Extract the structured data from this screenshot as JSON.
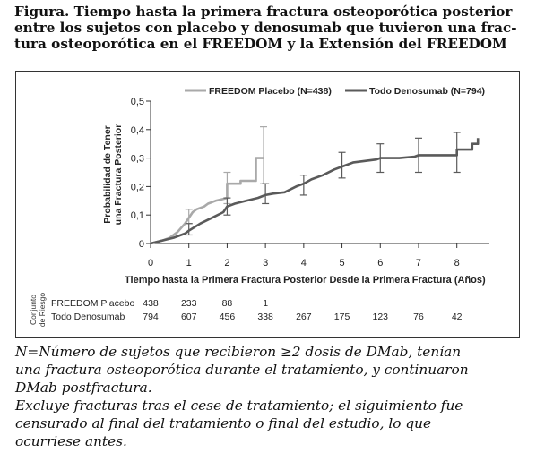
{
  "title_lines": [
    "Figura. Tiempo hasta la primera fractura osteoporótica posterior",
    "entre los sujetos con placebo y denosumab que tuvieron una frac-",
    "tura osteoporótica en el FREEDOM y la Extensión del FREEDOM"
  ],
  "chart_data": {
    "type": "line",
    "xlabel": "Tiempo hasta la Primera Fractura Posterior Desde la Primera Fractura (Años)",
    "ylabel_lines": [
      "Probabilidad de Tener",
      "una Fractura Posterior"
    ],
    "xlim": [
      0,
      8.85
    ],
    "ylim": [
      0,
      0.5
    ],
    "x_ticks": [
      "0",
      "1",
      "2",
      "3",
      "4",
      "5",
      "6",
      "7",
      "8"
    ],
    "y_ticks": [
      "0",
      "0,1",
      "0,2",
      "0,3",
      "0,4",
      "0,5"
    ],
    "legend_position": "top",
    "series": [
      {
        "name": "FREEDOM Placebo (N=438)",
        "color": "#a9a9a9",
        "step": [
          [
            0,
            0
          ],
          [
            0.3,
            0.01
          ],
          [
            0.5,
            0.02
          ],
          [
            0.7,
            0.04
          ],
          [
            0.9,
            0.07
          ],
          [
            1.0,
            0.09
          ],
          [
            1.1,
            0.11
          ],
          [
            1.2,
            0.12
          ],
          [
            1.4,
            0.13
          ],
          [
            1.5,
            0.14
          ],
          [
            1.7,
            0.15
          ],
          [
            1.85,
            0.155
          ],
          [
            2.0,
            0.16
          ],
          [
            2.0,
            0.21
          ],
          [
            2.35,
            0.21
          ],
          [
            2.35,
            0.22
          ],
          [
            2.75,
            0.22
          ],
          [
            2.75,
            0.3
          ],
          [
            2.95,
            0.3
          ]
        ],
        "ci": [
          [
            1.0,
            0.07,
            0.12
          ],
          [
            2.0,
            0.14,
            0.25
          ],
          [
            2.95,
            0.21,
            0.41
          ]
        ]
      },
      {
        "name": "Todo Denosumab (N=794)",
        "color": "#5a5a5a",
        "step": [
          [
            0,
            0
          ],
          [
            0.3,
            0.01
          ],
          [
            0.6,
            0.02
          ],
          [
            0.9,
            0.035
          ],
          [
            1.0,
            0.045
          ],
          [
            1.3,
            0.07
          ],
          [
            1.6,
            0.09
          ],
          [
            1.9,
            0.11
          ],
          [
            2.0,
            0.13
          ],
          [
            2.2,
            0.14
          ],
          [
            2.5,
            0.15
          ],
          [
            2.8,
            0.16
          ],
          [
            3.0,
            0.17
          ],
          [
            3.2,
            0.175
          ],
          [
            3.5,
            0.18
          ],
          [
            3.8,
            0.2
          ],
          [
            4.0,
            0.21
          ],
          [
            4.2,
            0.225
          ],
          [
            4.5,
            0.24
          ],
          [
            4.8,
            0.26
          ],
          [
            5.0,
            0.27
          ],
          [
            5.3,
            0.285
          ],
          [
            5.6,
            0.29
          ],
          [
            5.9,
            0.295
          ],
          [
            6.0,
            0.3
          ],
          [
            6.5,
            0.3
          ],
          [
            6.9,
            0.305
          ],
          [
            7.0,
            0.31
          ],
          [
            7.5,
            0.31
          ],
          [
            8.0,
            0.31
          ],
          [
            8.0,
            0.33
          ],
          [
            8.4,
            0.33
          ],
          [
            8.4,
            0.35
          ],
          [
            8.55,
            0.35
          ],
          [
            8.55,
            0.37
          ]
        ],
        "ci": [
          [
            1.0,
            0.03,
            0.07
          ],
          [
            2.0,
            0.1,
            0.16
          ],
          [
            3.0,
            0.14,
            0.21
          ],
          [
            4.0,
            0.17,
            0.24
          ],
          [
            5.0,
            0.23,
            0.32
          ],
          [
            6.0,
            0.25,
            0.35
          ],
          [
            7.0,
            0.25,
            0.37
          ],
          [
            8.0,
            0.25,
            0.39
          ]
        ]
      }
    ],
    "risk_table": {
      "side_label_lines": [
        "Conjunto",
        "de Riesgo"
      ],
      "rows": [
        {
          "label": "FREEDOM Placebo",
          "values": [
            "438",
            "233",
            "88",
            "1"
          ]
        },
        {
          "label": "Todo Denosumab",
          "values": [
            "794",
            "607",
            "456",
            "338",
            "267",
            "175",
            "123",
            "76",
            "42"
          ]
        }
      ]
    }
  },
  "notes_lines": [
    "N=Número de sujetos que recibieron ≥2 dosis de DMab, tenían",
    "una fractura osteoporótica durante el tratamiento, y continuaron",
    "DMab postfractura.",
    "Excluye fracturas tras el cese de tratamiento; el siguimiento fue",
    "censurado al final del tratamiento o final del estudio, lo que",
    "ocurriese antes."
  ]
}
